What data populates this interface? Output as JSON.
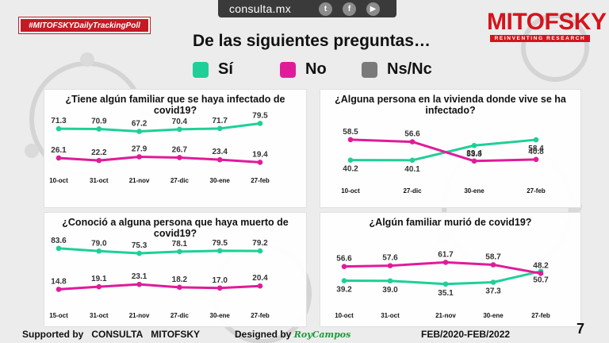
{
  "header": {
    "website": "consulta.mx",
    "social_icons": [
      "twitter-icon",
      "facebook-icon",
      "youtube-icon"
    ],
    "hashtag": "#MITOFSKYDailyTrackingPoll",
    "logo_name": "MITOFSKY",
    "logo_tagline": "REINVENTING RESEARCH"
  },
  "title": "De las siguientes preguntas…",
  "legend": [
    {
      "label": "Sí",
      "color": "#1fcf97"
    },
    {
      "label": "No",
      "color": "#e01b9a"
    },
    {
      "label": "Ns/Nc",
      "color": "#7a7a7a"
    }
  ],
  "colors": {
    "si": "#1fcf97",
    "no": "#e01b9a",
    "nsnc": "#7a7a7a",
    "brand": "#d4141c"
  },
  "chart_data": [
    {
      "type": "line",
      "title": "¿Tiene algún familiar que se haya infectado de covid19?",
      "categories": [
        "10-oct",
        "31-oct",
        "21-nov",
        "27-dic",
        "30-ene",
        "27-feb"
      ],
      "series": [
        {
          "name": "Sí",
          "values": [
            71.3,
            70.9,
            67.2,
            70.4,
            71.7,
            79.5
          ]
        },
        {
          "name": "No",
          "values": [
            26.1,
            22.2,
            27.9,
            26.7,
            23.4,
            19.4
          ]
        }
      ]
    },
    {
      "type": "line",
      "title": "¿Alguna persona en la vivienda donde vive se ha infectado?",
      "categories": [
        "10-oct",
        "27-dic",
        "30-ene",
        "27-feb"
      ],
      "series": [
        {
          "name": "Sí",
          "values": [
            40.2,
            40.1,
            53.3,
            58.4
          ]
        },
        {
          "name": "No",
          "values": [
            58.5,
            56.6,
            39.4,
            40.8
          ]
        }
      ]
    },
    {
      "type": "line",
      "title": "¿Conoció a alguna persona que haya muerto de covid19?",
      "categories": [
        "15-oct",
        "31-oct",
        "21-nov",
        "27-dic",
        "30-ene",
        "27-feb"
      ],
      "series": [
        {
          "name": "Sí",
          "values": [
            83.6,
            79.0,
            75.3,
            78.1,
            79.5,
            79.2
          ]
        },
        {
          "name": "No",
          "values": [
            14.8,
            19.1,
            23.1,
            18.2,
            17.0,
            20.4
          ]
        }
      ]
    },
    {
      "type": "line",
      "title": "¿Algún familiar murió de covid19?",
      "categories": [
        "10-oct",
        "31-oct",
        "21-nov",
        "30-ene",
        "27-feb"
      ],
      "series": [
        {
          "name": "Sí",
          "values": [
            39.2,
            39.0,
            35.1,
            37.3,
            50.7
          ]
        },
        {
          "name": "No",
          "values": [
            56.6,
            57.6,
            61.7,
            58.7,
            48.2
          ]
        }
      ]
    }
  ],
  "footer": {
    "supported_by": "Supported by",
    "consulta": "CONSULTA",
    "mitofsky": "MITOFSKY",
    "designed_by": "Designed by",
    "designer": "RoyCampos",
    "period": "FEB/2020-FEB/2022",
    "page_number": "7"
  }
}
